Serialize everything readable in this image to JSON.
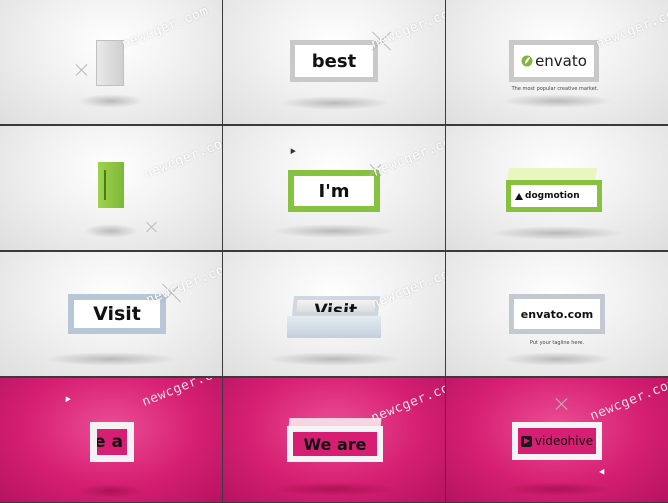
{
  "watermark": "newcger.com",
  "colors": {
    "light_bg": "#f1f1f1",
    "pink_bg": "#d61f72",
    "frame_gray": "#c8c8c8",
    "frame_green": "#8cc63f",
    "envato_green": "#82b540"
  },
  "panels": [
    {
      "text": ""
    },
    {
      "text": "best"
    },
    {
      "logo": "envato",
      "tagline": "The most popular creative market."
    },
    {
      "text": ""
    },
    {
      "text": "I'm"
    },
    {
      "text": "dogmotion"
    },
    {
      "text": "Visit"
    },
    {
      "text": "Visit"
    },
    {
      "text": "envato.com",
      "tagline": "Put your tagline here."
    },
    {
      "text": "e a"
    },
    {
      "text": "We are"
    },
    {
      "text": "videohive"
    }
  ]
}
